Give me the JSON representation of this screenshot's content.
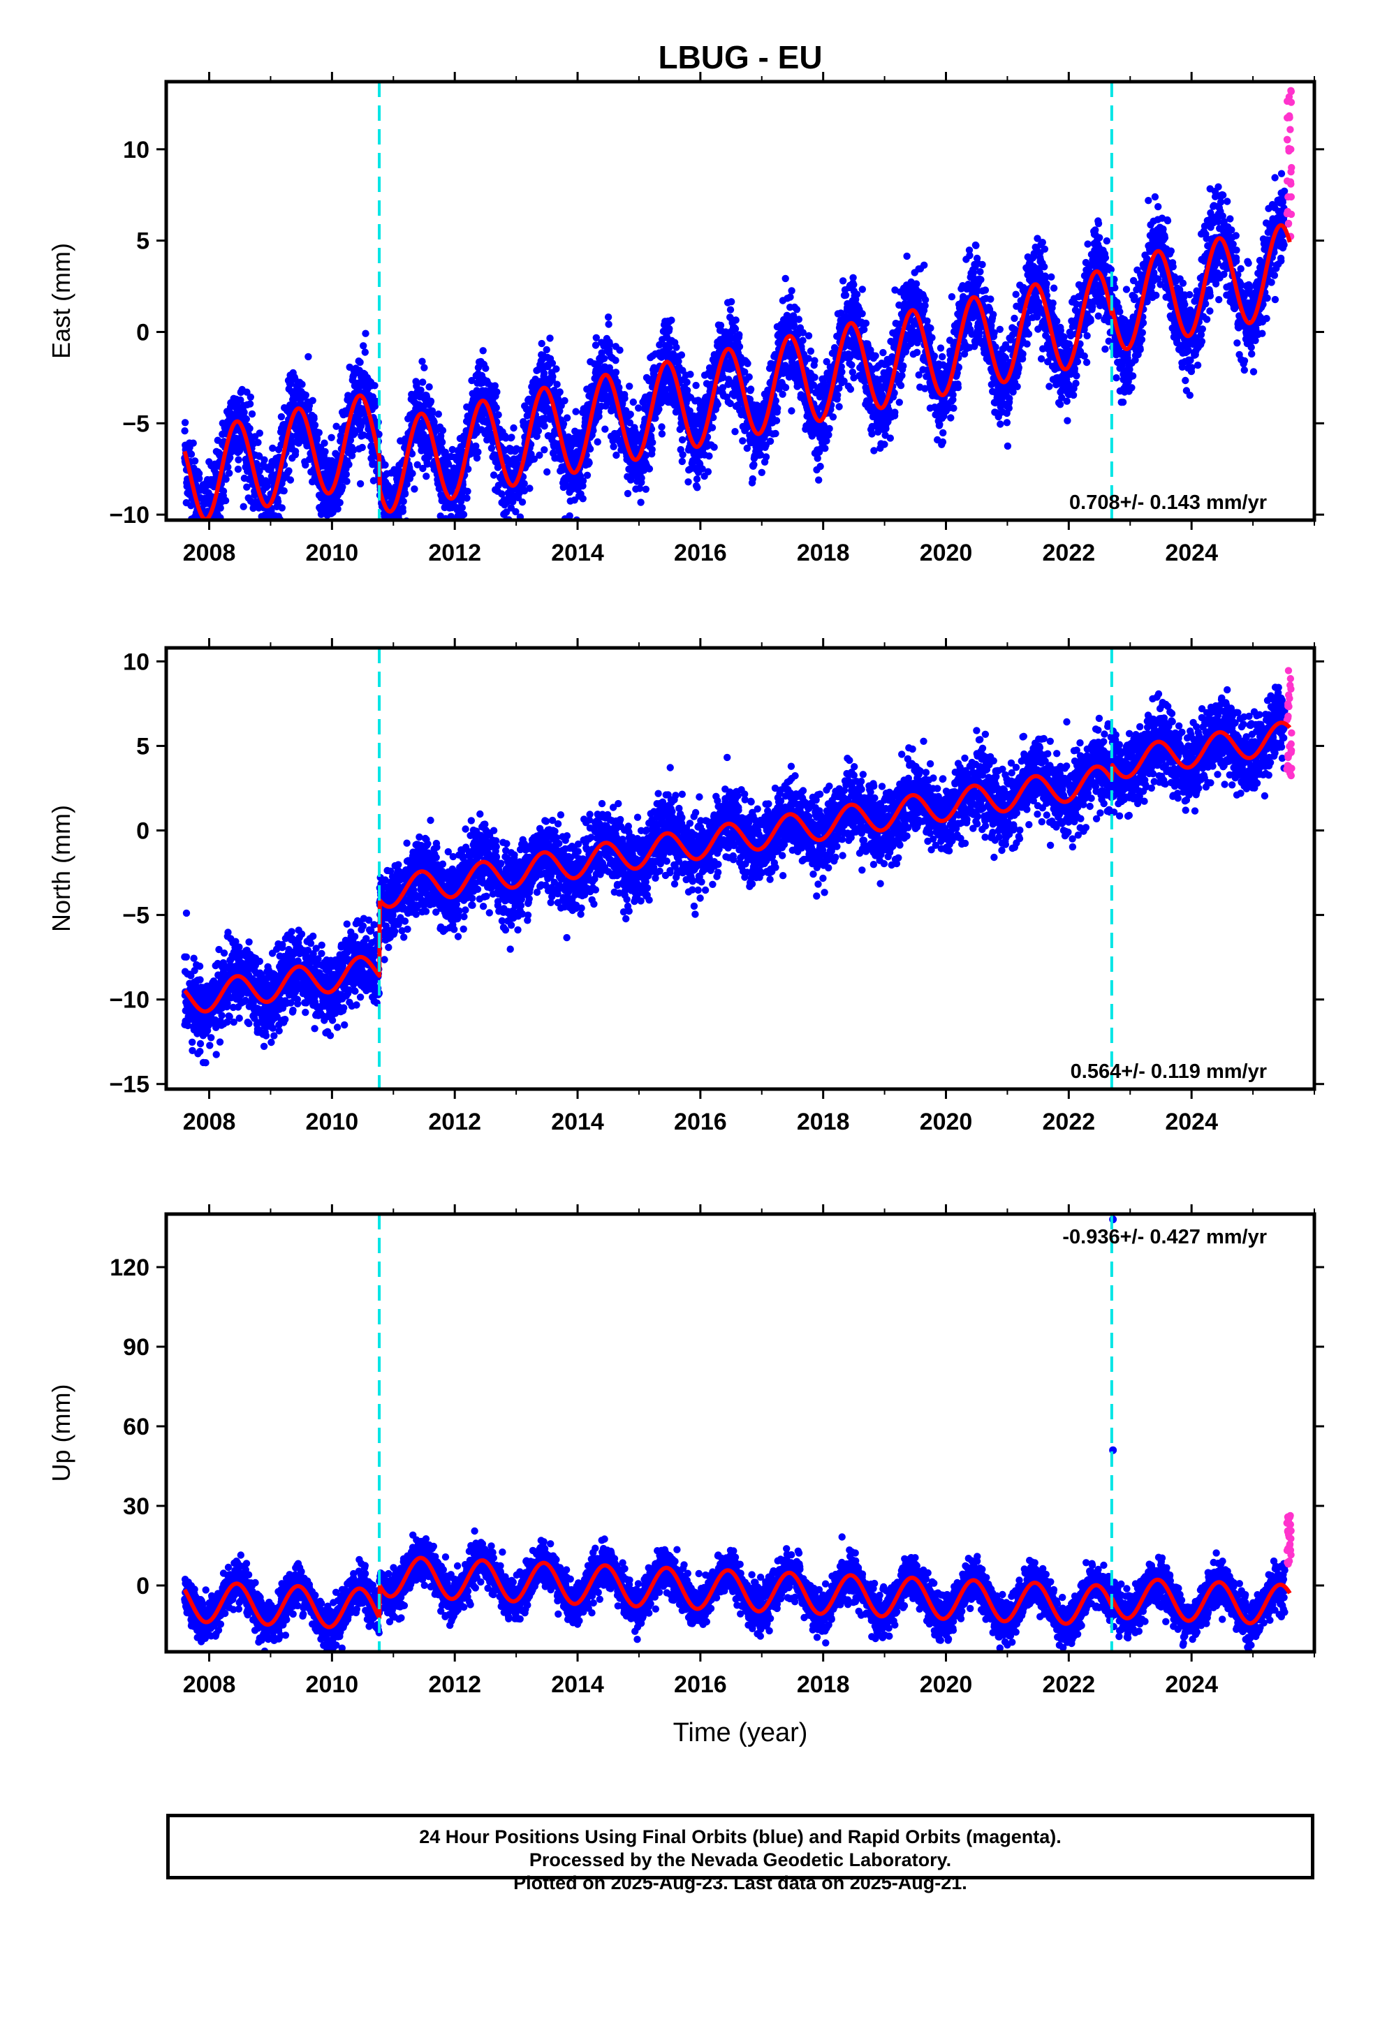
{
  "title": "LBUG - EU",
  "colors": {
    "final_orbits": "#0000ff",
    "rapid_orbits": "#ff33cc",
    "model": "#ff0000",
    "events": "#00e5e5",
    "axes": "#000000"
  },
  "chart_data": [
    {
      "type": "scatter",
      "ylabel": "East (mm)",
      "xlabel": "",
      "xlim": [
        2007.3,
        2026.0
      ],
      "ylim": [
        -10.3,
        13.7
      ],
      "xticks": [
        2008,
        2010,
        2012,
        2014,
        2016,
        2018,
        2020,
        2022,
        2024
      ],
      "yticks": [
        -10,
        -5,
        0,
        5,
        10
      ],
      "events": [
        2010.77,
        2022.7
      ],
      "rate_label": "0.708+/- 0.143 mm/yr",
      "rate_position": "bottom-right",
      "model": {
        "start": 2007.6,
        "end": 2025.6,
        "intercept": -8.0,
        "ref_year": 2007.6,
        "rate": 0.708,
        "offsets": [
          [
            2010.77,
            -1.7
          ],
          [
            2022.7,
            0.4
          ]
        ],
        "annual_amplitude": 2.5,
        "annual_phase_year": 2007.95,
        "noise_sd": 1.2
      },
      "rapid": {
        "x_start": 2025.55,
        "x_end": 2025.63,
        "y_min": 5.2,
        "y_max": 13.3
      }
    },
    {
      "type": "scatter",
      "ylabel": "North (mm)",
      "xlabel": "",
      "xlim": [
        2007.3,
        2026.0
      ],
      "ylim": [
        -15.3,
        10.8
      ],
      "xticks": [
        2008,
        2010,
        2012,
        2014,
        2016,
        2018,
        2020,
        2022,
        2024
      ],
      "yticks": [
        -15,
        -10,
        -5,
        0,
        5,
        10
      ],
      "events": [
        2010.77,
        2022.7
      ],
      "rate_label": "0.564+/- 0.119 mm/yr",
      "rate_position": "bottom-right",
      "model": {
        "start": 2007.6,
        "end": 2025.6,
        "intercept": -10.0,
        "ref_year": 2007.6,
        "rate": 0.564,
        "offsets": [
          [
            2010.77,
            4.5
          ],
          [
            2022.7,
            0.9
          ]
        ],
        "annual_amplitude": 0.9,
        "annual_phase_year": 2007.95,
        "noise_sd": 1.1
      },
      "rapid": {
        "x_start": 2025.55,
        "x_end": 2025.63,
        "y_min": 3.0,
        "y_max": 9.8
      }
    },
    {
      "type": "scatter",
      "ylabel": "Up (mm)",
      "xlabel": "Time (year)",
      "xlim": [
        2007.3,
        2026.0
      ],
      "ylim": [
        -25,
        140
      ],
      "xticks": [
        2008,
        2010,
        2012,
        2014,
        2016,
        2018,
        2020,
        2022,
        2024
      ],
      "yticks": [
        0,
        30,
        60,
        90,
        120
      ],
      "events": [
        2010.77,
        2022.7
      ],
      "rate_label": "-0.936+/- 0.427 mm/yr",
      "rate_position": "top-right",
      "model": {
        "start": 2007.6,
        "end": 2025.6,
        "intercept": -6.0,
        "ref_year": 2007.6,
        "rate": -0.936,
        "offsets": [
          [
            2010.77,
            12.5
          ],
          [
            2022.7,
            3.0
          ]
        ],
        "annual_amplitude": 7.5,
        "annual_phase_year": 2007.95,
        "noise_sd": 4.0
      },
      "outliers": [
        [
          2022.72,
          51
        ],
        [
          2022.72,
          138
        ]
      ],
      "rapid": {
        "x_start": 2025.55,
        "x_end": 2025.63,
        "y_min": 6,
        "y_max": 27
      }
    }
  ],
  "footer": {
    "line1": "24 Hour Positions Using Final Orbits (blue) and Rapid Orbits (magenta).",
    "line2": "Processed by the Nevada Geodetic Laboratory.",
    "line3": "Plotted on 2025-Aug-23. Last data on 2025-Aug-21."
  }
}
